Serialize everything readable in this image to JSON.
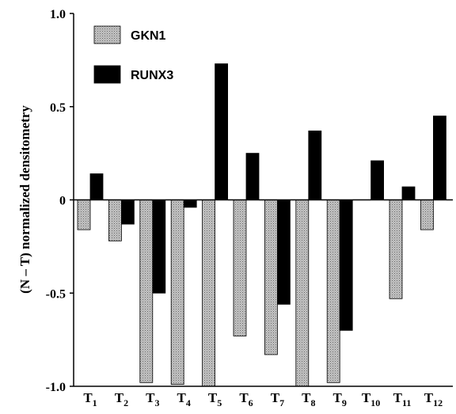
{
  "chart_data": {
    "type": "bar",
    "title": "",
    "xlabel": "",
    "ylabel": "(N – T) normalized densitometry",
    "ylim": [
      -1.0,
      1.0
    ],
    "yticks": [
      "1.0",
      "0.5",
      "0",
      "-0.5",
      "-1.0"
    ],
    "ytick_values": [
      1.0,
      0.5,
      0,
      -0.5,
      -1.0
    ],
    "categories": [
      {
        "base": "T",
        "sub": "1"
      },
      {
        "base": "T",
        "sub": "2"
      },
      {
        "base": "T",
        "sub": "3"
      },
      {
        "base": "T",
        "sub": "4"
      },
      {
        "base": "T",
        "sub": "5"
      },
      {
        "base": "T",
        "sub": "6"
      },
      {
        "base": "T",
        "sub": "7"
      },
      {
        "base": "T",
        "sub": "8"
      },
      {
        "base": "T",
        "sub": "9"
      },
      {
        "base": "T",
        "sub": "10"
      },
      {
        "base": "T",
        "sub": "11"
      },
      {
        "base": "T",
        "sub": "12"
      }
    ],
    "series": [
      {
        "name": "GKN1",
        "color": "#b0b0b0",
        "pattern": "dotted-gray",
        "values": [
          -0.16,
          -0.22,
          -0.98,
          -0.99,
          -1.0,
          -0.73,
          -0.83,
          -1.0,
          -0.98,
          0.0,
          -0.53,
          -0.16
        ]
      },
      {
        "name": "RUNX3",
        "color": "#000000",
        "pattern": "solid",
        "values": [
          0.14,
          -0.13,
          -0.5,
          -0.04,
          0.73,
          0.25,
          -0.56,
          0.37,
          -0.7,
          0.21,
          0.07,
          0.45
        ]
      }
    ],
    "legend_position": "top-left",
    "grid": false
  }
}
